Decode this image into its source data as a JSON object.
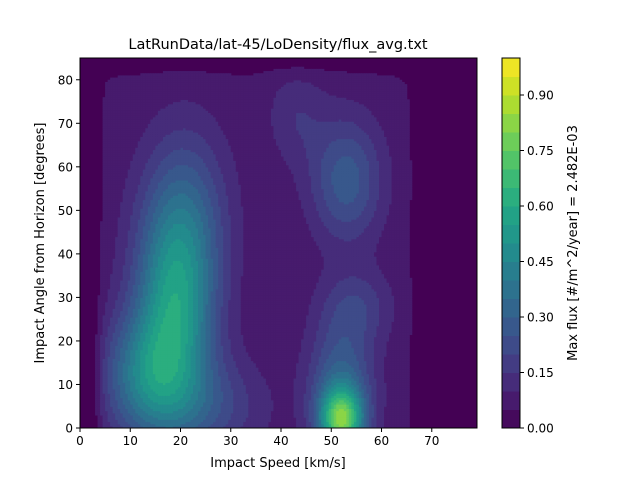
{
  "chart_data": {
    "type": "heatmap",
    "title": "LatRunData/lat-45/LoDensity/flux_avg.txt",
    "xlabel": "Impact Speed [km/s]",
    "ylabel": "Impact Angle from Horizon [degrees]",
    "xlim": [
      0,
      79
    ],
    "ylim": [
      0,
      85
    ],
    "x_ticks": [
      "0",
      "10",
      "20",
      "30",
      "40",
      "50",
      "60",
      "70"
    ],
    "x_tick_values": [
      0,
      10,
      20,
      30,
      40,
      50,
      60,
      70
    ],
    "y_ticks": [
      "0",
      "10",
      "20",
      "30",
      "40",
      "50",
      "60",
      "70",
      "80"
    ],
    "y_tick_values": [
      0,
      10,
      20,
      30,
      40,
      50,
      60,
      70,
      80
    ],
    "colorbar": {
      "label": "Max flux [#/m^2/year] = 2.482E-03",
      "range": [
        0,
        1
      ],
      "levels": 20,
      "ticks": [
        "0.00",
        "0.15",
        "0.30",
        "0.45",
        "0.60",
        "0.75",
        "0.90"
      ],
      "tick_values": [
        0,
        0.15,
        0.3,
        0.45,
        0.6,
        0.75,
        0.9
      ]
    },
    "colormap": [
      "#440154",
      "#482475",
      "#414487",
      "#355f8d",
      "#2a788e",
      "#21918c",
      "#22a884",
      "#44bf70",
      "#7ad151",
      "#bddf26",
      "#fde725"
    ],
    "features": [
      {
        "x": 19,
        "y": 28,
        "sx": 5.5,
        "sy": 16,
        "amp": 0.45
      },
      {
        "x": 21,
        "y": 50,
        "sx": 6,
        "sy": 14,
        "amp": 0.18
      },
      {
        "x": 13,
        "y": 12,
        "sx": 6,
        "sy": 10,
        "amp": 0.3
      },
      {
        "x": 25,
        "y": 5,
        "sx": 8,
        "sy": 8,
        "amp": 0.15
      },
      {
        "x": 52,
        "y": 2,
        "sx": 3,
        "sy": 5,
        "amp": 0.6
      },
      {
        "x": 52,
        "y": 10,
        "sx": 4.5,
        "sy": 10,
        "amp": 0.25
      },
      {
        "x": 55,
        "y": 28,
        "sx": 5,
        "sy": 6,
        "amp": 0.12
      },
      {
        "x": 53,
        "y": 57,
        "sx": 5,
        "sy": 10,
        "amp": 0.22
      },
      {
        "x": 43,
        "y": 72,
        "sx": 4,
        "sy": 8,
        "amp": 0.08
      }
    ]
  }
}
